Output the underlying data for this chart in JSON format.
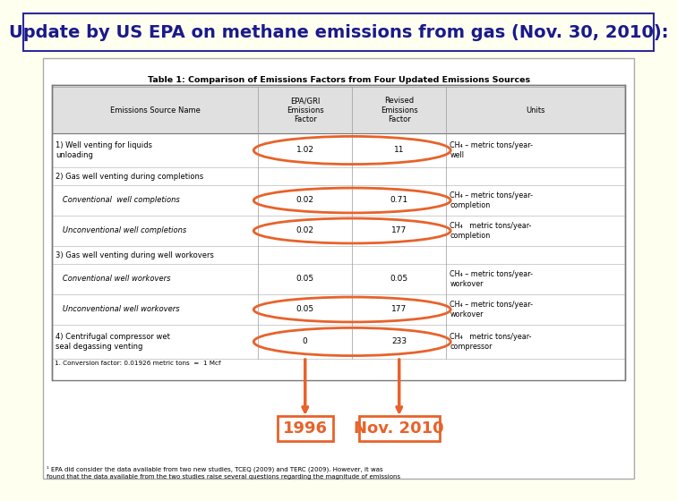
{
  "title": "Update by US EPA on methane emissions from gas (Nov. 30, 2010):",
  "title_color": "#1a1a8c",
  "title_fontsize": 14,
  "bg_color": "#fffff0",
  "outer_border_color": "#2a2a9c",
  "table_title": "Table 1: Comparison of Emissions Factors from Four Updated Emissions Sources",
  "col_headers": [
    "Emissions Source Name",
    "EPA/GRI\nEmissions\nFactor",
    "Revised\nEmissions\nFactor",
    "Units"
  ],
  "rows": [
    [
      "1) Well venting for liquids\nunloading",
      "1.02",
      "11",
      "CH₄ – metric tons/year-\nwell"
    ],
    [
      "2) Gas well venting during completions",
      "",
      "",
      ""
    ],
    [
      "   Conventional  well completions",
      "0.02",
      "0.71",
      "CH₄ – metric tons/year-\ncompletion"
    ],
    [
      "   Unconventional well completions",
      "0.02",
      "177",
      "CH₄   metric tons/year-\ncompletion"
    ],
    [
      "3) Gas well venting during well workovers",
      "",
      "",
      ""
    ],
    [
      "   Conventional well workovers",
      "0.05",
      "0.05",
      "CH₄ – metric tons/year-\nworkover"
    ],
    [
      "   Unconventional well workovers",
      "0.05",
      "177",
      "CH₄ – metric tons/year-\nworkover"
    ],
    [
      "4) Centrifugal compressor wet\nseal degassing venting",
      "0",
      "233",
      "CH₄   metric tons/year-\ncompressor"
    ]
  ],
  "footnote_table": "1. Conversion factor: 0.01926 metric tons  =  1 Mcf",
  "footnote_bottom": "¹ EPA did consider the data available from two new studies, TCEQ (2009) and TERC (2009). However, it was\nfound that the data available from the two studies raise several questions regarding the magnitude of emissions",
  "circle_color": "#e8622a",
  "label_1996": "1996",
  "label_nov2010": "Nov. 2010",
  "label_color": "#e8622a",
  "label_fontsize": 13
}
